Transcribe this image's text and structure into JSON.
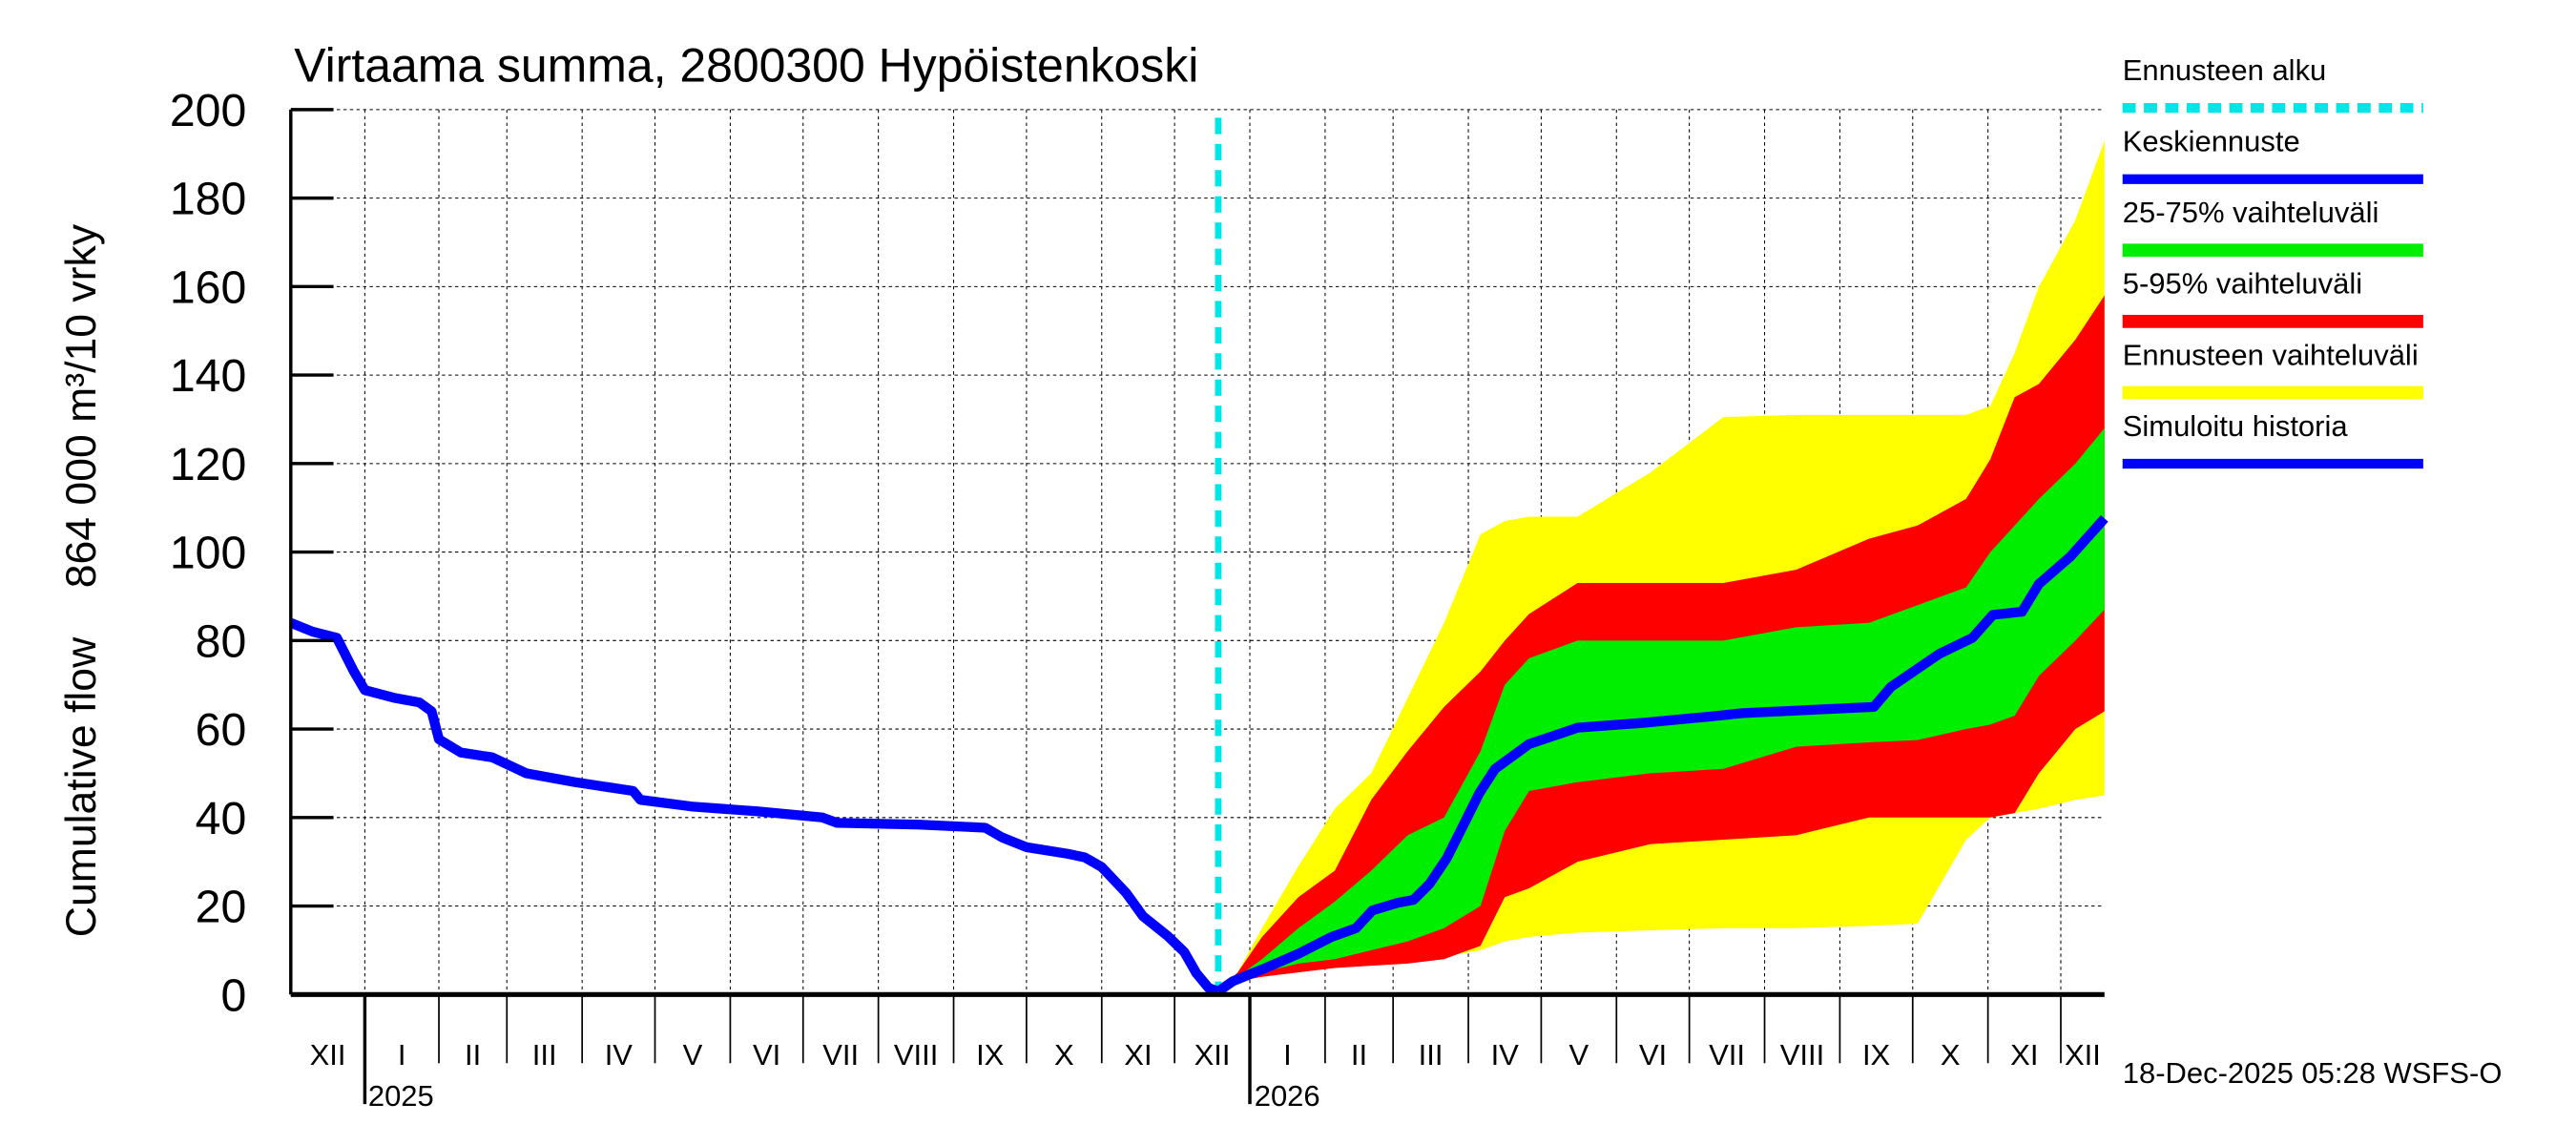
{
  "chart_data": {
    "type": "area",
    "title": "Virtaama summa, 2800300 Hypöistenkoski",
    "ylabel_fi": "864 000 m³/10 vrky",
    "ylabel_en": "Cumulative flow",
    "x_unit": "days since 2024-12-01",
    "xlim": [
      0,
      747
    ],
    "ylim": [
      0,
      200
    ],
    "yticks": [
      0,
      20,
      40,
      60,
      80,
      100,
      120,
      140,
      160,
      180,
      200
    ],
    "grid": true,
    "legend_position": "right",
    "month_boundaries": [
      0,
      30.5,
      61,
      89,
      120,
      150,
      181,
      211,
      242,
      273,
      303,
      334,
      364,
      395,
      426,
      454,
      485,
      515,
      546,
      576,
      607,
      638,
      668,
      699,
      729,
      747
    ],
    "month_labels": [
      "XII",
      "I",
      "II",
      "III",
      "IV",
      "V",
      "VI",
      "VII",
      "VIII",
      "IX",
      "X",
      "XI",
      "XII",
      "I",
      "II",
      "III",
      "IV",
      "V",
      "VI",
      "VII",
      "VIII",
      "IX",
      "X",
      "XI",
      "XII"
    ],
    "year_labels": [
      {
        "label": "2025",
        "day": 31
      },
      {
        "label": "2026",
        "day": 396
      }
    ],
    "forecast_start_day": 382,
    "timestamp": "18-Dec-2025 05:28 WSFS-O",
    "legend": [
      {
        "label": "Ennusteen alku",
        "color": "#00e5e5",
        "style": "dashed"
      },
      {
        "label": "Keskiennuste",
        "color": "#0000ff",
        "style": "line"
      },
      {
        "label": "25-75% vaihteluväli",
        "color": "#00ee00",
        "style": "band"
      },
      {
        "label": "5-95% vaihteluväli",
        "color": "#ff0000",
        "style": "band"
      },
      {
        "label": "Ennusteen vaihteluväli",
        "color": "#ffff00",
        "style": "band"
      },
      {
        "label": "Simuloitu historia",
        "color": "#0000ff",
        "style": "line"
      }
    ],
    "history": {
      "name": "Simuloitu historia",
      "x": [
        0,
        9,
        19,
        26,
        30.5,
        43,
        53,
        58,
        61,
        70,
        83,
        97,
        117,
        141,
        144,
        165,
        192,
        219,
        225,
        259,
        286,
        293,
        303,
        320,
        327,
        334,
        344,
        351,
        361,
        368,
        373,
        378,
        382
      ],
      "y": [
        84,
        82,
        80.6,
        73,
        68.8,
        67,
        66,
        64,
        57.7,
        54.7,
        53.6,
        50,
        48,
        46,
        44,
        42.5,
        41.4,
        40,
        38.8,
        38.4,
        37.7,
        35.5,
        33.3,
        31.8,
        31,
        28.8,
        23,
        17.7,
        13.3,
        9.6,
        4.8,
        1.5,
        0.7
      ]
    },
    "median": {
      "name": "Keskiennuste",
      "x": [
        382,
        388,
        401.5,
        415,
        428.6,
        438.7,
        445.5,
        455.7,
        462.4,
        469,
        476,
        482.7,
        489.5,
        496,
        510,
        530,
        557,
        584,
        598,
        625,
        652,
        659,
        679,
        692.6,
        701,
        713,
        720,
        733,
        747
      ],
      "y": [
        0.7,
        3,
        6,
        9.2,
        13,
        15,
        19,
        20.7,
        21.4,
        25,
        30.7,
        38,
        45.5,
        51,
        56.6,
        60.3,
        61.4,
        62.8,
        63.6,
        64.3,
        65,
        69.5,
        77,
        80.6,
        85.8,
        86.5,
        92.8,
        99,
        107.6
      ]
    },
    "bands_x": [
      382,
      390,
      400,
      415,
      430,
      445,
      460,
      475,
      490,
      500,
      510,
      530,
      560,
      590,
      620,
      650,
      670,
      690,
      700,
      710,
      720,
      735,
      747
    ],
    "bands": [
      {
        "name": "Ennusteen vaihteluväli",
        "color": "#ffff00",
        "lower": [
          0.7,
          3,
          4,
          6,
          7,
          7,
          8,
          8.5,
          10,
          12,
          13,
          14,
          14.5,
          15,
          15,
          15.5,
          16,
          35,
          40,
          41,
          42,
          44,
          45
        ],
        "upper": [
          1,
          5,
          15,
          29,
          42,
          50,
          67,
          84,
          104,
          107,
          108,
          108,
          118,
          130.5,
          131,
          131,
          131,
          131,
          133,
          145,
          160,
          175,
          193
        ]
      },
      {
        "name": "5-95% vaihteluväli",
        "color": "#ff0000",
        "lower": [
          0.7,
          3,
          4,
          5,
          6,
          6.5,
          7,
          8,
          11,
          22,
          24,
          30,
          34,
          35,
          36,
          40,
          40,
          40,
          40,
          41,
          50,
          60,
          64
        ],
        "upper": [
          1,
          5,
          13,
          22,
          28,
          44,
          55,
          65,
          73,
          80,
          86,
          93,
          93,
          93,
          96,
          103,
          106,
          112,
          121,
          135,
          138,
          148,
          158
        ]
      },
      {
        "name": "25-75% vaihteluväli",
        "color": "#00ee00",
        "lower": [
          0.7,
          3,
          5,
          7,
          8,
          10,
          12,
          15,
          20,
          37,
          46,
          48,
          50,
          51,
          56,
          57,
          57.5,
          60,
          61,
          63,
          72,
          80,
          87
        ],
        "upper": [
          1,
          4,
          8,
          15,
          21,
          28,
          36,
          40,
          55,
          70,
          76,
          80,
          80,
          80,
          83,
          84,
          88,
          92,
          100,
          106,
          112,
          120,
          128
        ]
      }
    ]
  }
}
